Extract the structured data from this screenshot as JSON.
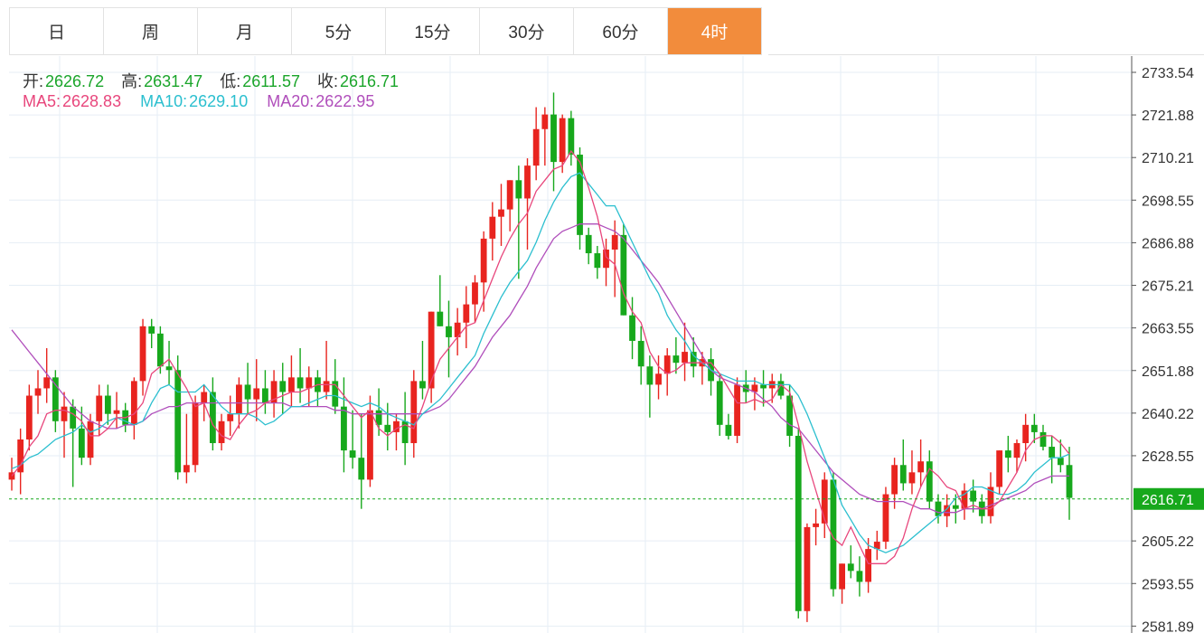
{
  "tabs": [
    "日",
    "周",
    "月",
    "5分",
    "15分",
    "30分",
    "60分",
    "4时"
  ],
  "active_tab": 7,
  "ohlc": {
    "open_label": "开:",
    "open": "2626.72",
    "high_label": "高:",
    "high": "2631.47",
    "low_label": "低:",
    "low": "2611.57",
    "close_label": "收:",
    "close": "2616.71"
  },
  "ma": {
    "ma5_label": "MA5:",
    "ma5": "2628.83",
    "ma10_label": "MA10:",
    "ma10": "2629.10",
    "ma20_label": "MA20:",
    "ma20": "2622.95"
  },
  "colors": {
    "up": "#e8241f",
    "down": "#17a81c",
    "ma5": "#e8467c",
    "ma10": "#2bbfcf",
    "ma20": "#b04ebb",
    "price_line": "#17a81c",
    "accent": "#f28c3c"
  },
  "chart_data": {
    "type": "candlestick",
    "y_ticks": [
      "2733.54",
      "2721.88",
      "2710.21",
      "2698.55",
      "2686.88",
      "2675.21",
      "2663.55",
      "2651.88",
      "2640.22",
      "2628.55",
      "2616.71",
      "2605.22",
      "2593.55",
      "2581.89"
    ],
    "ylim": [
      2580,
      2738
    ],
    "last_price": "2616.71",
    "candles": [
      [
        2622,
        2628,
        2619,
        2624
      ],
      [
        2624,
        2636,
        2618,
        2633
      ],
      [
        2633,
        2648,
        2630,
        2645
      ],
      [
        2645,
        2652,
        2640,
        2647
      ],
      [
        2647,
        2658,
        2643,
        2650
      ],
      [
        2650,
        2652,
        2635,
        2638
      ],
      [
        2638,
        2646,
        2628,
        2642
      ],
      [
        2642,
        2644,
        2620,
        2636
      ],
      [
        2636,
        2642,
        2626,
        2628
      ],
      [
        2628,
        2640,
        2626,
        2638
      ],
      [
        2638,
        2648,
        2634,
        2645
      ],
      [
        2645,
        2648,
        2637,
        2640
      ],
      [
        2640,
        2646,
        2636,
        2641
      ],
      [
        2641,
        2643,
        2635,
        2637
      ],
      [
        2637,
        2650,
        2633,
        2649
      ],
      [
        2649,
        2666,
        2645,
        2664
      ],
      [
        2664,
        2666,
        2658,
        2662
      ],
      [
        2662,
        2664,
        2651,
        2653
      ],
      [
        2653,
        2660,
        2648,
        2652
      ],
      [
        2652,
        2656,
        2622,
        2624
      ],
      [
        2624,
        2640,
        2621,
        2626
      ],
      [
        2626,
        2645,
        2624,
        2643
      ],
      [
        2643,
        2648,
        2638,
        2646
      ],
      [
        2646,
        2650,
        2630,
        2632
      ],
      [
        2632,
        2640,
        2630,
        2638
      ],
      [
        2638,
        2645,
        2634,
        2640
      ],
      [
        2640,
        2650,
        2636,
        2648
      ],
      [
        2648,
        2654,
        2640,
        2644
      ],
      [
        2644,
        2655,
        2638,
        2647
      ],
      [
        2647,
        2652,
        2640,
        2643
      ],
      [
        2643,
        2652,
        2639,
        2649
      ],
      [
        2649,
        2654,
        2640,
        2646
      ],
      [
        2646,
        2656,
        2642,
        2650
      ],
      [
        2650,
        2658,
        2643,
        2647
      ],
      [
        2647,
        2653,
        2642,
        2650
      ],
      [
        2650,
        2652,
        2642,
        2646
      ],
      [
        2646,
        2660,
        2644,
        2649
      ],
      [
        2649,
        2655,
        2640,
        2642
      ],
      [
        2642,
        2650,
        2624,
        2630
      ],
      [
        2630,
        2641,
        2625,
        2628
      ],
      [
        2628,
        2640,
        2614,
        2622
      ],
      [
        2622,
        2645,
        2620,
        2641
      ],
      [
        2641,
        2647,
        2634,
        2637
      ],
      [
        2637,
        2643,
        2630,
        2635
      ],
      [
        2635,
        2640,
        2630,
        2638
      ],
      [
        2638,
        2646,
        2626,
        2632
      ],
      [
        2632,
        2652,
        2628,
        2649
      ],
      [
        2649,
        2660,
        2644,
        2647
      ],
      [
        2647,
        2668,
        2643,
        2668
      ],
      [
        2668,
        2678,
        2664,
        2664
      ],
      [
        2664,
        2671,
        2650,
        2661
      ],
      [
        2661,
        2669,
        2656,
        2665
      ],
      [
        2665,
        2675,
        2658,
        2670
      ],
      [
        2670,
        2678,
        2665,
        2676
      ],
      [
        2676,
        2690,
        2668,
        2688
      ],
      [
        2688,
        2698,
        2682,
        2694
      ],
      [
        2694,
        2703,
        2686,
        2696
      ],
      [
        2696,
        2704,
        2690,
        2704
      ],
      [
        2704,
        2708,
        2677,
        2699
      ],
      [
        2699,
        2710,
        2685,
        2708
      ],
      [
        2708,
        2724,
        2704,
        2718
      ],
      [
        2718,
        2724,
        2708,
        2722
      ],
      [
        2722,
        2728,
        2701,
        2709
      ],
      [
        2709,
        2722,
        2706,
        2721
      ],
      [
        2721,
        2723,
        2708,
        2711
      ],
      [
        2711,
        2713,
        2685,
        2689
      ],
      [
        2689,
        2691,
        2681,
        2684
      ],
      [
        2684,
        2686,
        2677,
        2680
      ],
      [
        2680,
        2688,
        2675,
        2685
      ],
      [
        2685,
        2693,
        2672,
        2689
      ],
      [
        2689,
        2692,
        2667,
        2667
      ],
      [
        2667,
        2672,
        2655,
        2660
      ],
      [
        2660,
        2664,
        2648,
        2653
      ],
      [
        2653,
        2656,
        2639,
        2648
      ],
      [
        2648,
        2656,
        2644,
        2651
      ],
      [
        2651,
        2658,
        2645,
        2656
      ],
      [
        2656,
        2661,
        2651,
        2654
      ],
      [
        2654,
        2665,
        2649,
        2657
      ],
      [
        2657,
        2661,
        2650,
        2653
      ],
      [
        2653,
        2657,
        2648,
        2655
      ],
      [
        2655,
        2658,
        2645,
        2649
      ],
      [
        2649,
        2651,
        2634,
        2637
      ],
      [
        2637,
        2640,
        2633,
        2634
      ],
      [
        2634,
        2650,
        2632,
        2648
      ],
      [
        2648,
        2652,
        2643,
        2646
      ],
      [
        2646,
        2650,
        2641,
        2648
      ],
      [
        2648,
        2652,
        2642,
        2647
      ],
      [
        2647,
        2651,
        2643,
        2649
      ],
      [
        2649,
        2651,
        2644,
        2645
      ],
      [
        2645,
        2648,
        2631,
        2634
      ],
      [
        2634,
        2636,
        2584,
        2586
      ],
      [
        2586,
        2610,
        2583,
        2609
      ],
      [
        2609,
        2614,
        2604,
        2610
      ],
      [
        2610,
        2624,
        2606,
        2622
      ],
      [
        2622,
        2624,
        2590,
        2592
      ],
      [
        2592,
        2599,
        2588,
        2599
      ],
      [
        2599,
        2604,
        2595,
        2597
      ],
      [
        2597,
        2601,
        2590,
        2594
      ],
      [
        2594,
        2606,
        2591,
        2603
      ],
      [
        2603,
        2608,
        2600,
        2605
      ],
      [
        2605,
        2620,
        2603,
        2618
      ],
      [
        2618,
        2628,
        2614,
        2626
      ],
      [
        2626,
        2633,
        2619,
        2621
      ],
      [
        2621,
        2630,
        2618,
        2624
      ],
      [
        2624,
        2633,
        2620,
        2627
      ],
      [
        2627,
        2630,
        2614,
        2616
      ],
      [
        2616,
        2618,
        2610,
        2612
      ],
      [
        2612,
        2618,
        2609,
        2615
      ],
      [
        2615,
        2618,
        2610,
        2614
      ],
      [
        2614,
        2621,
        2611,
        2619
      ],
      [
        2619,
        2622,
        2613,
        2616
      ],
      [
        2616,
        2618,
        2610,
        2612
      ],
      [
        2612,
        2624,
        2610,
        2620
      ],
      [
        2620,
        2630,
        2618,
        2630
      ],
      [
        2630,
        2634,
        2624,
        2628
      ],
      [
        2628,
        2633,
        2624,
        2632
      ],
      [
        2632,
        2640,
        2627,
        2637
      ],
      [
        2637,
        2640,
        2632,
        2635
      ],
      [
        2635,
        2637,
        2630,
        2631
      ],
      [
        2631,
        2634,
        2621,
        2628
      ],
      [
        2628,
        2633,
        2624,
        2626
      ],
      [
        2626,
        2631,
        2611,
        2617
      ]
    ],
    "ma5": [
      2623,
      2626,
      2631,
      2634,
      2640,
      2641,
      2641,
      2640,
      2638,
      2634,
      2634,
      2636,
      2639,
      2639,
      2640,
      2643,
      2651,
      2653,
      2655,
      2651,
      2647,
      2642,
      2643,
      2637,
      2634,
      2633,
      2637,
      2640,
      2641,
      2643,
      2644,
      2645,
      2646,
      2646,
      2647,
      2648,
      2648,
      2648,
      2645,
      2642,
      2639,
      2641,
      2636,
      2634,
      2636,
      2637,
      2636,
      2642,
      2649,
      2655,
      2658,
      2661,
      2664,
      2665,
      2671,
      2677,
      2683,
      2688,
      2692,
      2695,
      2701,
      2704,
      2707,
      2708,
      2712,
      2709,
      2702,
      2694,
      2683,
      2681,
      2673,
      2668,
      2665,
      2657,
      2653,
      2651,
      2652,
      2654,
      2654,
      2654,
      2654,
      2651,
      2647,
      2643,
      2643,
      2644,
      2643,
      2644,
      2648,
      2646,
      2637,
      2627,
      2619,
      2611,
      2606,
      2604,
      2609,
      2604,
      2599,
      2599,
      2599,
      2601,
      2606,
      2614,
      2620,
      2625,
      2623,
      2620,
      2619,
      2614,
      2615,
      2614,
      2614,
      2616,
      2620,
      2624,
      2630,
      2633,
      2634,
      2634,
      2632,
      2629
    ],
    "ma10": [
      2625,
      2626,
      2628,
      2629,
      2631,
      2633,
      2634,
      2635,
      2637,
      2635,
      2636,
      2638,
      2639,
      2638,
      2637,
      2638,
      2643,
      2647,
      2648,
      2646,
      2646,
      2646,
      2648,
      2645,
      2642,
      2640,
      2640,
      2640,
      2639,
      2637,
      2638,
      2640,
      2642,
      2642,
      2643,
      2644,
      2645,
      2645,
      2644,
      2643,
      2642,
      2643,
      2642,
      2640,
      2639,
      2638,
      2637,
      2640,
      2642,
      2644,
      2647,
      2650,
      2653,
      2656,
      2662,
      2667,
      2672,
      2676,
      2679,
      2682,
      2687,
      2693,
      2698,
      2702,
      2705,
      2706,
      2703,
      2700,
      2697,
      2697,
      2692,
      2687,
      2682,
      2677,
      2673,
      2667,
      2663,
      2660,
      2656,
      2654,
      2652,
      2651,
      2650,
      2649,
      2649,
      2649,
      2648,
      2648,
      2648,
      2648,
      2645,
      2640,
      2634,
      2628,
      2622,
      2615,
      2611,
      2607,
      2604,
      2603,
      2602,
      2603,
      2604,
      2606,
      2608,
      2610,
      2612,
      2614,
      2617,
      2618,
      2620,
      2620,
      2619,
      2618,
      2618,
      2619,
      2621,
      2624,
      2626,
      2628,
      2628,
      2629
    ],
    "ma20": [
      2663,
      2660,
      2657,
      2654,
      2651,
      2648,
      2645,
      2642,
      2640,
      2638,
      2637,
      2636,
      2636,
      2637,
      2637,
      2638,
      2640,
      2641,
      2642,
      2642,
      2643,
      2643,
      2643,
      2643,
      2643,
      2643,
      2643,
      2643,
      2643,
      2643,
      2643,
      2643,
      2642,
      2642,
      2642,
      2642,
      2642,
      2641,
      2641,
      2640,
      2640,
      2640,
      2640,
      2640,
      2640,
      2640,
      2640,
      2640,
      2641,
      2642,
      2644,
      2647,
      2650,
      2653,
      2657,
      2661,
      2664,
      2667,
      2671,
      2675,
      2680,
      2684,
      2688,
      2690,
      2691,
      2692,
      2692,
      2692,
      2691,
      2690,
      2688,
      2685,
      2682,
      2679,
      2676,
      2672,
      2668,
      2664,
      2660,
      2656,
      2652,
      2650,
      2649,
      2648,
      2647,
      2646,
      2644,
      2642,
      2639,
      2637,
      2636,
      2633,
      2630,
      2627,
      2624,
      2622,
      2620,
      2618,
      2617,
      2616,
      2616,
      2616,
      2616,
      2615,
      2614,
      2614,
      2613,
      2613,
      2613,
      2614,
      2614,
      2614,
      2615,
      2616,
      2617,
      2618,
      2619,
      2621,
      2622,
      2623,
      2623,
      2623
    ]
  }
}
